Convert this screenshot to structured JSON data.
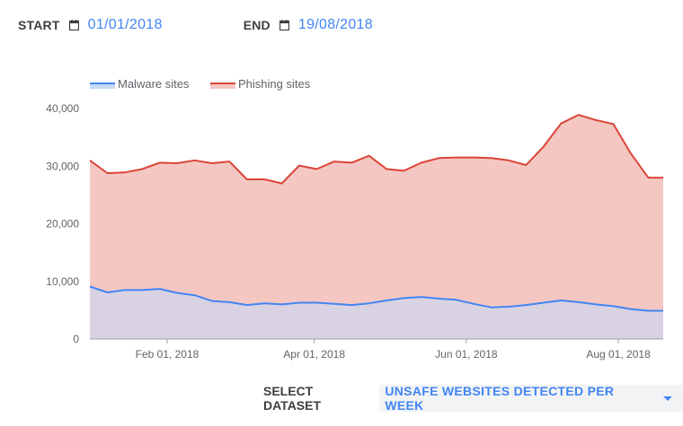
{
  "controls": {
    "start_label": "START",
    "start_date": "01/01/2018",
    "end_label": "END",
    "end_date": "19/08/2018",
    "calendar_icon": "calendar-icon",
    "dataset_label": "SELECT DATASET",
    "dataset_value": "UNSAFE WEBSITES DETECTED PER WEEK",
    "dropdown_icon": "caret-down-icon",
    "accent_color": "#4285f4"
  },
  "chart_data": {
    "type": "area",
    "x": [
      "2018-01-01",
      "2018-01-08",
      "2018-01-15",
      "2018-01-22",
      "2018-01-29",
      "2018-02-05",
      "2018-02-12",
      "2018-02-19",
      "2018-02-26",
      "2018-03-05",
      "2018-03-12",
      "2018-03-19",
      "2018-03-26",
      "2018-04-02",
      "2018-04-09",
      "2018-04-16",
      "2018-04-23",
      "2018-04-30",
      "2018-05-07",
      "2018-05-14",
      "2018-05-21",
      "2018-05-28",
      "2018-06-04",
      "2018-06-11",
      "2018-06-18",
      "2018-06-25",
      "2018-07-02",
      "2018-07-09",
      "2018-07-16",
      "2018-07-23",
      "2018-07-30",
      "2018-08-06",
      "2018-08-13",
      "2018-08-19"
    ],
    "series": [
      {
        "name": "Malware sites",
        "color": "#4285f4",
        "fill": "#c7d9f8",
        "values": [
          9100,
          8100,
          8500,
          8500,
          8700,
          8000,
          7600,
          6600,
          6400,
          5900,
          6200,
          6000,
          6300,
          6300,
          6100,
          5900,
          6200,
          6700,
          7100,
          7300,
          7000,
          6800,
          6100,
          5500,
          5600,
          5900,
          6300,
          6700,
          6400,
          6000,
          5700,
          5200,
          4900,
          4900
        ]
      },
      {
        "name": "Phishing sites",
        "color": "#db4437",
        "fill": "#f4c7c3",
        "values": [
          31000,
          28800,
          28900,
          29500,
          30600,
          30500,
          31000,
          30500,
          30800,
          27700,
          27700,
          27000,
          30100,
          29500,
          30800,
          30600,
          31800,
          29500,
          29200,
          30600,
          31400,
          31500,
          31500,
          31400,
          31000,
          30200,
          33400,
          37400,
          38900,
          38000,
          37300,
          32200,
          28000,
          28000
        ]
      }
    ],
    "x_ticks": [
      "Feb 01, 2018",
      "Apr 01, 2018",
      "Jun 01, 2018",
      "Aug 01, 2018"
    ],
    "y_ticks": [
      "0",
      "10,000",
      "20,000",
      "30,000",
      "40,000"
    ],
    "ylim": [
      0,
      40000
    ],
    "legend_position": "top-left",
    "grid": false
  }
}
